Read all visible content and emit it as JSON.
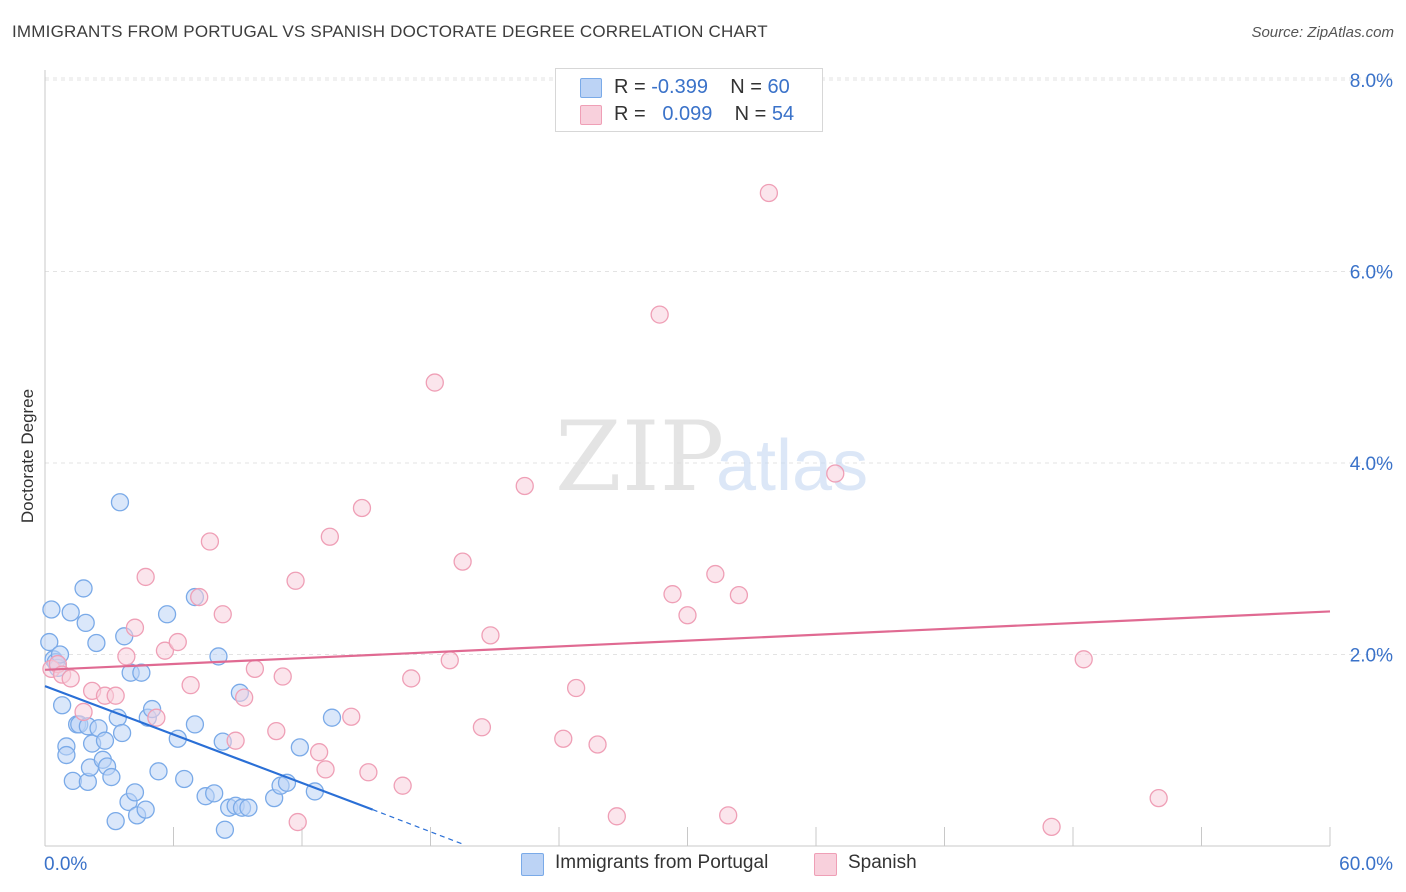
{
  "chart_data": {
    "type": "scatter",
    "title": "IMMIGRANTS FROM PORTUGAL VS SPANISH DOCTORATE DEGREE CORRELATION CHART",
    "source": "Source: ZipAtlas.com",
    "ylabel": "Doctorate Degree",
    "xlim": [
      0,
      60
    ],
    "ylim": [
      0,
      8.4
    ],
    "x_tick_labels": [
      "0.0%",
      "60.0%"
    ],
    "y_ticks": [
      2,
      4,
      6,
      8
    ],
    "y_tick_labels": [
      "2.0%",
      "4.0%",
      "6.0%",
      "8.0%"
    ],
    "watermark": "ZIPatlas",
    "legend": {
      "rows": [
        {
          "r_label": "R =",
          "r_value": "-0.399",
          "n_label": "N =",
          "n_value": "60"
        },
        {
          "r_label": "R =",
          "r_value": "0.099",
          "n_label": "N =",
          "n_value": "54"
        }
      ]
    },
    "series": [
      {
        "name": "Immigrants from Portugal",
        "color": "#7aaae8",
        "fill": "#bcd3f5",
        "trend_color": "#2a6fd6",
        "trend": {
          "x0": 0,
          "y0": 1.67,
          "x1": 15.3,
          "y1": 0.38,
          "dash_x1": 19.5,
          "dash_y1": 0.02
        },
        "points": [
          [
            0.2,
            2.13
          ],
          [
            0.3,
            2.47
          ],
          [
            0.4,
            1.95
          ],
          [
            0.5,
            1.92
          ],
          [
            0.6,
            1.86
          ],
          [
            0.7,
            2.0
          ],
          [
            0.8,
            1.47
          ],
          [
            1.0,
            1.04
          ],
          [
            1.0,
            0.95
          ],
          [
            1.2,
            2.44
          ],
          [
            1.3,
            0.68
          ],
          [
            1.5,
            1.27
          ],
          [
            1.6,
            1.27
          ],
          [
            1.8,
            2.69
          ],
          [
            1.9,
            2.33
          ],
          [
            2.0,
            0.67
          ],
          [
            2.0,
            1.25
          ],
          [
            2.1,
            0.82
          ],
          [
            2.2,
            1.07
          ],
          [
            2.4,
            2.12
          ],
          [
            2.5,
            1.23
          ],
          [
            2.7,
            0.9
          ],
          [
            2.8,
            1.1
          ],
          [
            2.9,
            0.83
          ],
          [
            3.1,
            0.72
          ],
          [
            3.3,
            0.26
          ],
          [
            3.4,
            1.34
          ],
          [
            3.5,
            3.59
          ],
          [
            3.6,
            1.18
          ],
          [
            3.7,
            2.19
          ],
          [
            3.9,
            0.46
          ],
          [
            4.0,
            1.81
          ],
          [
            4.2,
            0.56
          ],
          [
            4.3,
            0.32
          ],
          [
            4.5,
            1.81
          ],
          [
            4.7,
            0.38
          ],
          [
            4.8,
            1.34
          ],
          [
            5.0,
            1.43
          ],
          [
            5.3,
            0.78
          ],
          [
            5.7,
            2.42
          ],
          [
            6.2,
            1.12
          ],
          [
            6.5,
            0.7
          ],
          [
            7.0,
            2.6
          ],
          [
            7.0,
            1.27
          ],
          [
            7.5,
            0.52
          ],
          [
            7.9,
            0.55
          ],
          [
            8.1,
            1.98
          ],
          [
            8.3,
            1.09
          ],
          [
            8.4,
            0.17
          ],
          [
            8.6,
            0.4
          ],
          [
            8.9,
            0.42
          ],
          [
            9.1,
            1.6
          ],
          [
            9.2,
            0.4
          ],
          [
            9.5,
            0.4
          ],
          [
            10.7,
            0.5
          ],
          [
            11.0,
            0.63
          ],
          [
            11.3,
            0.66
          ],
          [
            11.9,
            1.03
          ],
          [
            12.6,
            0.57
          ],
          [
            13.4,
            1.34
          ]
        ]
      },
      {
        "name": "Spanish",
        "color": "#ef9fb6",
        "fill": "#f8d0dc",
        "trend_color": "#e06a92",
        "trend": {
          "x0": 0,
          "y0": 1.84,
          "x1": 60,
          "y1": 2.45
        },
        "points": [
          [
            0.3,
            1.85
          ],
          [
            0.6,
            1.9
          ],
          [
            0.8,
            1.79
          ],
          [
            1.2,
            1.75
          ],
          [
            1.8,
            1.4
          ],
          [
            2.2,
            1.62
          ],
          [
            2.8,
            1.57
          ],
          [
            3.3,
            1.57
          ],
          [
            3.8,
            1.98
          ],
          [
            4.2,
            2.28
          ],
          [
            4.7,
            2.81
          ],
          [
            5.2,
            1.34
          ],
          [
            5.6,
            2.04
          ],
          [
            6.2,
            2.13
          ],
          [
            6.8,
            1.68
          ],
          [
            7.2,
            2.6
          ],
          [
            7.7,
            3.18
          ],
          [
            8.3,
            2.42
          ],
          [
            8.9,
            1.1
          ],
          [
            9.3,
            1.55
          ],
          [
            9.8,
            1.85
          ],
          [
            10.8,
            1.2
          ],
          [
            11.1,
            1.77
          ],
          [
            11.7,
            2.77
          ],
          [
            11.8,
            0.25
          ],
          [
            12.8,
            0.98
          ],
          [
            13.3,
            3.23
          ],
          [
            13.1,
            0.8
          ],
          [
            14.3,
            1.35
          ],
          [
            14.8,
            3.53
          ],
          [
            15.1,
            0.77
          ],
          [
            16.7,
            0.63
          ],
          [
            17.1,
            1.75
          ],
          [
            18.2,
            4.84
          ],
          [
            18.9,
            1.94
          ],
          [
            19.5,
            2.97
          ],
          [
            20.4,
            1.24
          ],
          [
            20.8,
            2.2
          ],
          [
            22.4,
            3.76
          ],
          [
            24.2,
            1.12
          ],
          [
            24.8,
            1.65
          ],
          [
            25.8,
            1.06
          ],
          [
            26.7,
            0.31
          ],
          [
            28.7,
            5.55
          ],
          [
            29.3,
            2.63
          ],
          [
            30.0,
            2.41
          ],
          [
            31.3,
            2.84
          ],
          [
            31.9,
            0.32
          ],
          [
            32.4,
            2.62
          ],
          [
            33.8,
            6.82
          ],
          [
            36.9,
            3.89
          ],
          [
            47.0,
            0.2
          ],
          [
            48.5,
            1.95
          ],
          [
            52.0,
            0.5
          ]
        ]
      }
    ]
  }
}
